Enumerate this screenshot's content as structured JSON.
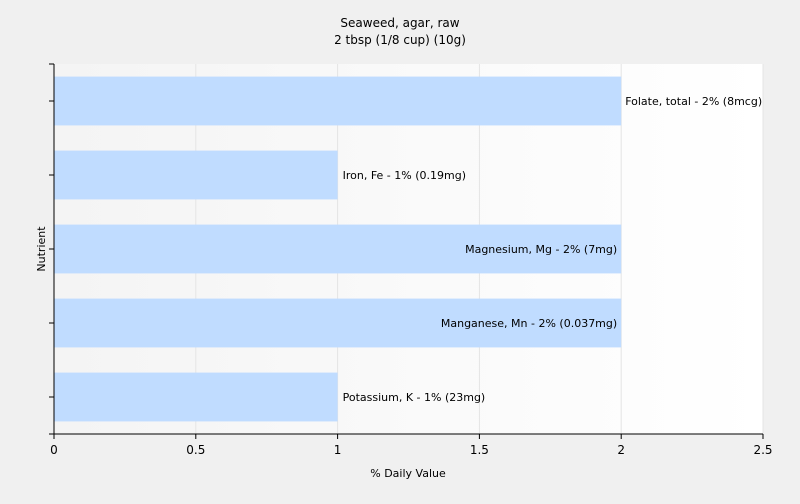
{
  "chart_data": {
    "type": "bar",
    "orientation": "horizontal",
    "title": "Seaweed, agar, raw",
    "subtitle": "2 tbsp (1/8 cup) (10g)",
    "xlabel": "% Daily Value",
    "ylabel": "Nutrient",
    "xlim": [
      0,
      2.5
    ],
    "x_ticks": [
      "0",
      "0.5",
      "1",
      "1.5",
      "2",
      "2.5"
    ],
    "grid": "vertical",
    "bar_color": "#c0dcff",
    "categories": [
      "Folate, total",
      "Iron, Fe",
      "Magnesium, Mg",
      "Manganese, Mn",
      "Potassium, K"
    ],
    "values": [
      2,
      1,
      2,
      2,
      1
    ],
    "labels": [
      "Folate, total - 2% (8mcg)",
      "Iron, Fe - 1% (0.19mg)",
      "Magnesium, Mg - 2% (7mg)",
      "Manganese, Mn - 2% (0.037mg)",
      "Potassium, K - 1% (23mg)"
    ]
  }
}
